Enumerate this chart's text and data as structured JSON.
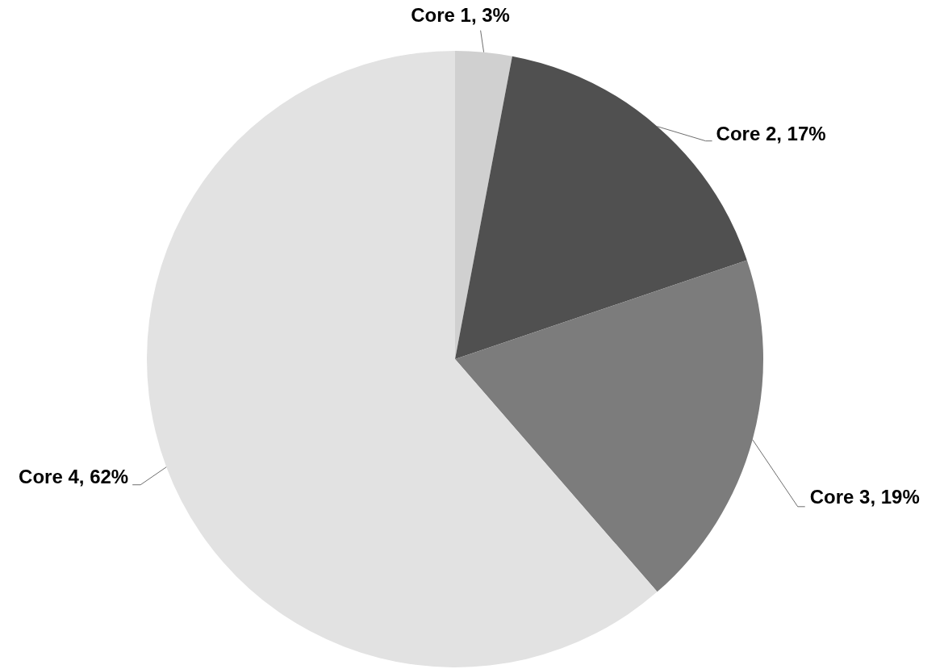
{
  "chart_data": {
    "type": "pie",
    "categories": [
      "Core 1",
      "Core 2",
      "Core 3",
      "Core 4"
    ],
    "values": [
      3,
      17,
      19,
      62
    ],
    "value_labels": [
      "3%",
      "17%",
      "19%",
      "62%"
    ],
    "colors": [
      "#d0d0d0",
      "#505050",
      "#7c7c7c",
      "#e2e2e2"
    ]
  }
}
